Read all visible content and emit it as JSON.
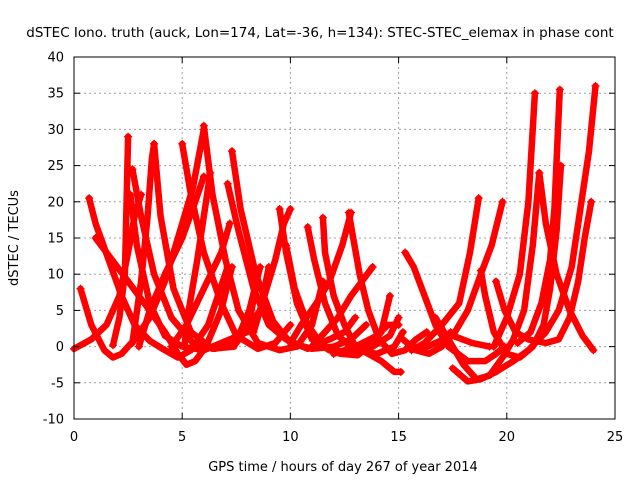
{
  "chart_data": {
    "type": "scatter",
    "title": "dSTEC Iono. truth (auck, Lon=174, Lat=-36, h=134): STEC-STEC_elemax in phase cont",
    "xlabel": "GPS time / hours of day 267 of year 2014",
    "ylabel": "dSTEC  / TECUs",
    "xlim": [
      0,
      25
    ],
    "ylim": [
      -10,
      40
    ],
    "xticks": [
      0,
      5,
      10,
      15,
      20,
      25
    ],
    "yticks": [
      -10,
      -5,
      0,
      5,
      10,
      15,
      20,
      25,
      30,
      35,
      40
    ],
    "xtick_labels": [
      "0",
      "5",
      "10",
      "15",
      "20",
      "25"
    ],
    "ytick_labels": [
      "-10",
      "-5",
      "0",
      "5",
      "10",
      "15",
      "20",
      "25",
      "30",
      "35",
      "40"
    ],
    "grid": true,
    "marker": "plus",
    "color": "#ff0000",
    "series": [
      {
        "points": [
          [
            0.3,
            8
          ],
          [
            0.8,
            3
          ],
          [
            1.4,
            -0.5
          ],
          [
            1.8,
            -1.5
          ],
          [
            2.2,
            -1
          ],
          [
            2.8,
            1
          ],
          [
            3.5,
            4
          ],
          [
            4.2,
            9
          ],
          [
            4.8,
            15
          ],
          [
            5.5,
            22
          ],
          [
            6,
            30
          ]
        ]
      },
      {
        "points": [
          [
            0,
            -0.3
          ],
          [
            0.8,
            1
          ],
          [
            1.5,
            3
          ],
          [
            2.1,
            7
          ],
          [
            2.5,
            13
          ],
          [
            2.8,
            18
          ],
          [
            3.1,
            21
          ]
        ]
      },
      {
        "points": [
          [
            0.7,
            20.5
          ],
          [
            1,
            17
          ],
          [
            1.6,
            12
          ],
          [
            2.2,
            7
          ],
          [
            2.8,
            3
          ],
          [
            3.5,
            0.8
          ],
          [
            4.2,
            -0.5
          ],
          [
            4.8,
            -1.5
          ],
          [
            5.4,
            -0.5
          ],
          [
            6.2,
            3
          ],
          [
            7.1,
            11
          ]
        ]
      },
      {
        "points": [
          [
            1,
            15
          ],
          [
            1.5,
            13
          ],
          [
            2.5,
            9
          ],
          [
            3.5,
            5
          ],
          [
            4.2,
            2
          ],
          [
            4.8,
            -1
          ],
          [
            5.2,
            -2.5
          ],
          [
            5.6,
            -2
          ],
          [
            6.1,
            0
          ],
          [
            6.8,
            5
          ],
          [
            7.3,
            11
          ]
        ]
      },
      {
        "points": [
          [
            1.8,
            0.2
          ],
          [
            2.1,
            4
          ],
          [
            2.35,
            10
          ],
          [
            2.5,
            29
          ]
        ]
      },
      {
        "points": [
          [
            2.6,
            21
          ],
          [
            2.9,
            14
          ],
          [
            3.5,
            6
          ],
          [
            4.2,
            1.5
          ],
          [
            5,
            0
          ],
          [
            6,
            -0.5
          ],
          [
            7.2,
            1
          ],
          [
            8,
            2
          ],
          [
            8.4,
            8
          ]
        ]
      },
      {
        "points": [
          [
            2.7,
            24.5
          ],
          [
            3.1,
            18
          ],
          [
            3.7,
            10
          ],
          [
            4.5,
            4
          ],
          [
            5.5,
            0.5
          ],
          [
            6.5,
            -0.3
          ],
          [
            7.5,
            0.5
          ],
          [
            8.6,
            5
          ],
          [
            9,
            11
          ]
        ]
      },
      {
        "points": [
          [
            2.7,
            0.5
          ],
          [
            3.1,
            9
          ],
          [
            3.4,
            18
          ],
          [
            3.6,
            26
          ],
          [
            3.7,
            28
          ]
        ]
      },
      {
        "points": [
          [
            3.7,
            28
          ],
          [
            4,
            18
          ],
          [
            4.6,
            8
          ],
          [
            5.4,
            2
          ],
          [
            6.4,
            -0.3
          ],
          [
            7.4,
            0
          ],
          [
            8.1,
            5
          ],
          [
            8.6,
            11
          ]
        ]
      },
      {
        "points": [
          [
            3,
            0
          ],
          [
            3.5,
            5
          ],
          [
            4.2,
            10
          ],
          [
            5,
            15
          ],
          [
            5.6,
            20
          ],
          [
            6,
            23.5
          ]
        ]
      },
      {
        "points": [
          [
            5,
            28
          ],
          [
            5.4,
            21
          ],
          [
            6,
            13
          ],
          [
            6.8,
            6
          ],
          [
            7.5,
            1.5
          ],
          [
            8.5,
            -0.3
          ],
          [
            9.3,
            0.5
          ],
          [
            10,
            3
          ]
        ]
      },
      {
        "points": [
          [
            5.1,
            0
          ],
          [
            5.3,
            5
          ],
          [
            5.7,
            12
          ],
          [
            6.1,
            20
          ],
          [
            6.3,
            24
          ]
        ]
      },
      {
        "points": [
          [
            6,
            30.5
          ],
          [
            6.4,
            21
          ],
          [
            7,
            12
          ],
          [
            7.6,
            5
          ],
          [
            8.5,
            0.5
          ],
          [
            9.5,
            -0.5
          ],
          [
            10.3,
            0
          ],
          [
            11,
            3
          ],
          [
            11.5,
            9
          ]
        ]
      },
      {
        "points": [
          [
            4.5,
            0
          ],
          [
            5.2,
            3
          ],
          [
            6,
            8
          ],
          [
            6.8,
            13
          ],
          [
            7.2,
            17
          ]
        ]
      },
      {
        "points": [
          [
            7.1,
            22.5
          ],
          [
            7.6,
            16
          ],
          [
            8.3,
            8
          ],
          [
            9,
            3
          ],
          [
            9.8,
            1
          ],
          [
            10.8,
            -0.3
          ],
          [
            11.8,
            1
          ],
          [
            12.5,
            2
          ],
          [
            13,
            4
          ]
        ]
      },
      {
        "points": [
          [
            7.3,
            27
          ],
          [
            7.7,
            19
          ],
          [
            8.4,
            10
          ],
          [
            9.2,
            3.5
          ],
          [
            10,
            0.5
          ],
          [
            11,
            -0.3
          ],
          [
            12,
            0
          ],
          [
            12.8,
            1
          ],
          [
            13.5,
            3
          ]
        ]
      },
      {
        "points": [
          [
            8.3,
            2
          ],
          [
            8.8,
            7
          ],
          [
            9.3,
            12
          ],
          [
            9.7,
            17
          ],
          [
            10,
            19
          ]
        ]
      },
      {
        "points": [
          [
            9.5,
            19
          ],
          [
            9.8,
            13
          ],
          [
            10.3,
            6
          ],
          [
            11,
            1
          ],
          [
            11.8,
            -0.5
          ],
          [
            12.8,
            -0.8
          ],
          [
            13.8,
            0
          ],
          [
            14.6,
            1.5
          ],
          [
            15,
            4
          ]
        ]
      },
      {
        "points": [
          [
            9.8,
            14
          ],
          [
            10.2,
            8
          ],
          [
            10.8,
            3
          ],
          [
            11.5,
            0
          ],
          [
            12.3,
            -1
          ],
          [
            13.1,
            -1.2
          ],
          [
            13.6,
            0
          ],
          [
            14.2,
            2
          ],
          [
            14.6,
            7
          ]
        ]
      },
      {
        "points": [
          [
            10.8,
            16.5
          ],
          [
            11.1,
            12
          ],
          [
            11.6,
            6
          ],
          [
            12.2,
            1.5
          ],
          [
            13,
            -0.5
          ],
          [
            14,
            -1
          ],
          [
            14.8,
            0
          ],
          [
            15.2,
            2
          ]
        ]
      },
      {
        "points": [
          [
            11.5,
            17.8
          ],
          [
            11.6,
            13
          ],
          [
            12,
            7
          ],
          [
            12.5,
            3
          ],
          [
            13,
            0
          ],
          [
            13.6,
            -1
          ],
          [
            14.2,
            -2
          ],
          [
            14.8,
            -3.5
          ],
          [
            15.1,
            -3.5
          ]
        ]
      },
      {
        "points": [
          [
            12.7,
            18.5
          ],
          [
            12.9,
            15
          ],
          [
            13.2,
            10
          ],
          [
            13.6,
            5
          ],
          [
            14.1,
            1
          ],
          [
            14.7,
            -1
          ],
          [
            15.3,
            -0.5
          ],
          [
            15.8,
            1
          ],
          [
            16.3,
            2
          ]
        ]
      },
      {
        "points": [
          [
            10,
            0.5
          ],
          [
            10.5,
            3
          ],
          [
            11.2,
            6
          ],
          [
            11.8,
            9
          ],
          [
            12.4,
            14
          ],
          [
            12.8,
            18.5
          ]
        ]
      },
      {
        "points": [
          [
            11,
            0
          ],
          [
            11.6,
            2
          ],
          [
            12.2,
            4
          ],
          [
            12.8,
            7
          ],
          [
            13.3,
            9
          ],
          [
            13.8,
            11
          ]
        ]
      },
      {
        "points": [
          [
            12,
            -1
          ],
          [
            13,
            0
          ],
          [
            14,
            1.5
          ],
          [
            14.5,
            3
          ],
          [
            15,
            3
          ]
        ]
      },
      {
        "points": [
          [
            15.3,
            13
          ],
          [
            15.7,
            11
          ],
          [
            16.2,
            7
          ],
          [
            16.7,
            3
          ],
          [
            17.3,
            0
          ],
          [
            18.2,
            -2
          ],
          [
            19,
            -2
          ],
          [
            19.5,
            -1
          ],
          [
            19.9,
            0
          ]
        ]
      },
      {
        "points": [
          [
            16.7,
            4
          ],
          [
            17.3,
            1
          ],
          [
            18,
            -2.5
          ],
          [
            18.6,
            -4.5
          ],
          [
            19.2,
            -4
          ],
          [
            19.8,
            -1.5
          ],
          [
            20.3,
            1
          ],
          [
            20.8,
            5
          ],
          [
            21.2,
            14
          ],
          [
            21.5,
            24
          ]
        ]
      },
      {
        "points": [
          [
            18.8,
            10.5
          ],
          [
            19,
            7
          ],
          [
            19.4,
            2
          ],
          [
            20,
            -1
          ],
          [
            20.6,
            -1.5
          ],
          [
            21.2,
            0
          ],
          [
            21.7,
            3
          ],
          [
            22,
            8
          ],
          [
            22.3,
            16
          ],
          [
            22.5,
            25
          ]
        ]
      },
      {
        "points": [
          [
            19.5,
            9
          ],
          [
            19.9,
            5
          ],
          [
            20.4,
            2
          ],
          [
            21,
            1
          ],
          [
            21.8,
            0.5
          ],
          [
            22.4,
            1
          ],
          [
            22.9,
            4
          ],
          [
            23.3,
            9
          ],
          [
            23.6,
            15
          ],
          [
            23.9,
            20
          ]
        ]
      },
      {
        "points": [
          [
            17.5,
            -3
          ],
          [
            18.2,
            -4.8
          ],
          [
            18.8,
            -4.5
          ],
          [
            19.5,
            -3.5
          ],
          [
            20.3,
            -2
          ],
          [
            21,
            -0.5
          ],
          [
            21.8,
            2
          ],
          [
            22.4,
            5
          ],
          [
            23,
            11
          ],
          [
            23.5,
            21
          ],
          [
            23.8,
            27
          ],
          [
            24.1,
            36
          ]
        ]
      },
      {
        "points": [
          [
            15.6,
            -0.5
          ],
          [
            16.2,
            0.5
          ],
          [
            17,
            3
          ],
          [
            17.8,
            6
          ],
          [
            18.3,
            13
          ],
          [
            18.7,
            20.5
          ]
        ]
      },
      {
        "points": [
          [
            17,
            0.5
          ],
          [
            17.6,
            2
          ],
          [
            18.2,
            5
          ],
          [
            18.8,
            10
          ],
          [
            19.3,
            14
          ],
          [
            19.8,
            20
          ]
        ]
      },
      {
        "points": [
          [
            20.5,
            0.5
          ],
          [
            21.1,
            2
          ],
          [
            21.6,
            6
          ],
          [
            22,
            12
          ],
          [
            22.2,
            19
          ],
          [
            22.45,
            35.5
          ]
        ]
      },
      {
        "points": [
          [
            21.5,
            24
          ],
          [
            21.8,
            17
          ],
          [
            22.3,
            10
          ],
          [
            22.9,
            5
          ],
          [
            23.5,
            1.5
          ],
          [
            24,
            -0.5
          ]
        ]
      },
      {
        "points": [
          [
            19.4,
            0
          ],
          [
            20,
            4
          ],
          [
            20.6,
            10
          ],
          [
            21,
            20
          ],
          [
            21.3,
            35
          ]
        ]
      },
      {
        "points": [
          [
            16,
            -0.5
          ],
          [
            16.7,
            0.5
          ],
          [
            17.5,
            1.5
          ],
          [
            18.4,
            0.5
          ],
          [
            19.2,
            0
          ]
        ]
      },
      {
        "points": [
          [
            15.2,
            1
          ],
          [
            15.8,
            -0.5
          ],
          [
            16.4,
            -1
          ],
          [
            17,
            0
          ],
          [
            17.4,
            2
          ]
        ]
      }
    ]
  }
}
